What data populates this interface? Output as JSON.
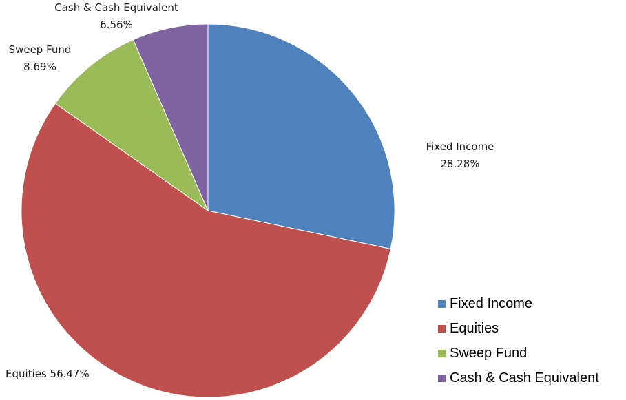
{
  "chart_data": {
    "type": "pie",
    "slices": [
      {
        "name": "Fixed Income",
        "value": 28.28,
        "color": "#4F81BD",
        "label_lines": [
          "Fixed Income",
          "28.28%"
        ]
      },
      {
        "name": "Equities",
        "value": 56.47,
        "color": "#C0504D",
        "label_lines": [
          "Equities 56.47%"
        ]
      },
      {
        "name": "Sweep Fund",
        "value": 8.69,
        "color": "#9BBB59",
        "label_lines": [
          "Sweep Fund",
          "8.69%"
        ]
      },
      {
        "name": "Cash & Cash Equivalent",
        "value": 6.56,
        "color": "#8064A2",
        "label_lines": [
          "Cash & Cash Equivalent",
          "6.56%"
        ]
      }
    ],
    "legend": {
      "position": "bottom-right",
      "entries": [
        "Fixed Income",
        "Equities",
        "Sweep Fund",
        "Cash & Cash Equivalent"
      ]
    }
  }
}
